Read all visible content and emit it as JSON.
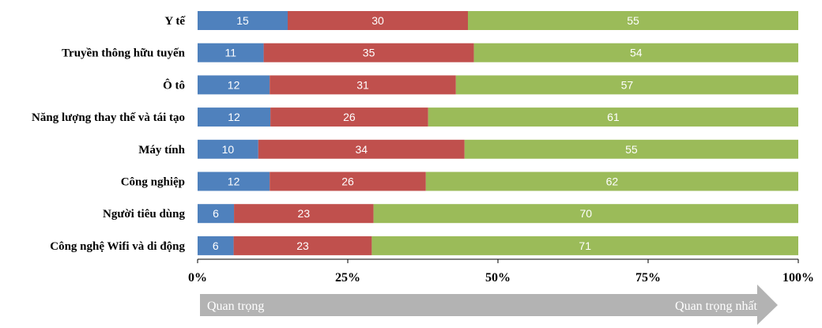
{
  "chart_data": {
    "type": "bar",
    "orientation": "horizontal",
    "stacked": true,
    "categories": [
      "Y tế",
      "Truyền thông hữu tuyến",
      "Ô tô",
      "Năng lượng thay thế và tái tạo",
      "Máy tính",
      "Công nghiệp",
      "Người tiêu dùng",
      "Công nghệ Wifi và di động"
    ],
    "series": [
      {
        "values": [
          15,
          11,
          12,
          12,
          10,
          12,
          6,
          6
        ],
        "color": "#4f81bd"
      },
      {
        "values": [
          30,
          35,
          31,
          26,
          34,
          26,
          23,
          23
        ],
        "color": "#c0504d"
      },
      {
        "values": [
          55,
          54,
          57,
          61,
          55,
          62,
          70,
          71
        ],
        "color": "#9bbb59"
      }
    ],
    "xlim": [
      0,
      100
    ],
    "xticks": [
      "0%",
      "25%",
      "50%",
      "75%",
      "100%"
    ],
    "grid": false,
    "data_labels": true,
    "arrow": {
      "start_label": "Quan trọng",
      "end_label": "Quan trọng nhất",
      "color": "#b3b3b3"
    }
  }
}
